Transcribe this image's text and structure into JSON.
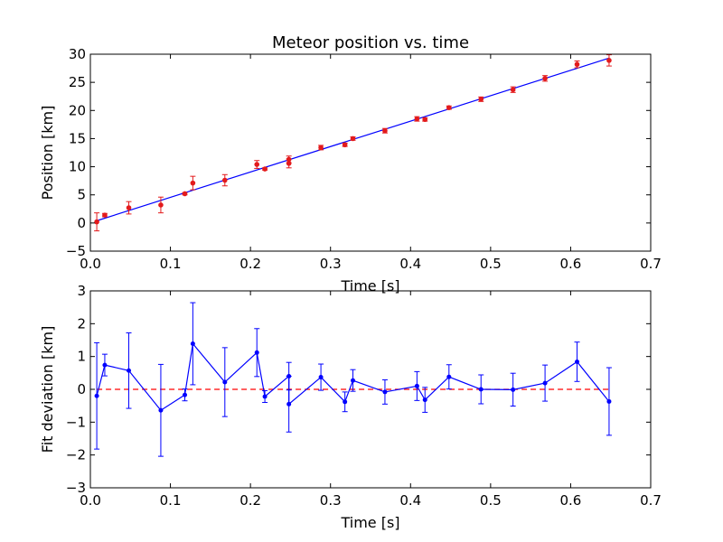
{
  "chart_data": [
    {
      "type": "scatter",
      "title": "Meteor position vs. time",
      "xlabel": "Time [s]",
      "ylabel": "Position [km]",
      "xlim": [
        0,
        0.7
      ],
      "ylim": [
        -5,
        30
      ],
      "xticks": [
        "0.0",
        "0.1",
        "0.2",
        "0.3",
        "0.4",
        "0.5",
        "0.6",
        "0.7"
      ],
      "yticks": [
        "−5",
        "0",
        "5",
        "10",
        "15",
        "20",
        "25",
        "30"
      ],
      "xtick_values": [
        0,
        0.1,
        0.2,
        0.3,
        0.4,
        0.5,
        0.6,
        0.7
      ],
      "ytick_values": [
        -5,
        0,
        5,
        10,
        15,
        20,
        25,
        30
      ],
      "grid": false,
      "points": {
        "color": "#e31a1c",
        "x": [
          0.008,
          0.018,
          0.048,
          0.088,
          0.118,
          0.128,
          0.168,
          0.208,
          0.218,
          0.248,
          0.248,
          0.288,
          0.318,
          0.328,
          0.368,
          0.408,
          0.418,
          0.448,
          0.488,
          0.528,
          0.568,
          0.608,
          0.648
        ],
        "y": [
          0.2,
          1.4,
          2.7,
          3.2,
          5.2,
          7.1,
          7.6,
          10.4,
          9.6,
          11.3,
          10.6,
          13.4,
          13.9,
          15.0,
          16.4,
          18.5,
          18.4,
          20.5,
          22.0,
          23.7,
          25.7,
          28.2,
          28.9
        ],
        "err": [
          1.6,
          0.3,
          1.1,
          1.4,
          0.2,
          1.2,
          1.0,
          0.7,
          0.2,
          0.6,
          0.8,
          0.4,
          0.3,
          0.3,
          0.4,
          0.4,
          0.3,
          0.3,
          0.4,
          0.5,
          0.5,
          0.6,
          1.0
        ]
      },
      "fit_line": {
        "color": "#0000ff",
        "x": [
          0.008,
          0.648
        ],
        "y": [
          0.4,
          29.3
        ]
      }
    },
    {
      "type": "scatter",
      "title": "",
      "xlabel": "Time [s]",
      "ylabel": "Fit deviation [km]",
      "xlim": [
        0,
        0.7
      ],
      "ylim": [
        -3,
        3
      ],
      "xticks": [
        "0.0",
        "0.1",
        "0.2",
        "0.3",
        "0.4",
        "0.5",
        "0.6",
        "0.7"
      ],
      "yticks": [
        "−3",
        "−2",
        "−1",
        "0",
        "1",
        "2",
        "3"
      ],
      "xtick_values": [
        0,
        0.1,
        0.2,
        0.3,
        0.4,
        0.5,
        0.6,
        0.7
      ],
      "ytick_values": [
        -3,
        -2,
        -1,
        0,
        1,
        2,
        3
      ],
      "grid": false,
      "series": {
        "color": "#0000ff",
        "x": [
          0.008,
          0.018,
          0.048,
          0.088,
          0.118,
          0.128,
          0.168,
          0.208,
          0.218,
          0.248,
          0.248,
          0.288,
          0.318,
          0.328,
          0.368,
          0.408,
          0.418,
          0.448,
          0.488,
          0.528,
          0.568,
          0.608,
          0.648
        ],
        "y": [
          -0.2,
          0.74,
          0.57,
          -0.64,
          -0.17,
          1.39,
          0.22,
          1.12,
          -0.22,
          0.4,
          -0.45,
          0.37,
          -0.38,
          0.27,
          -0.08,
          0.1,
          -0.32,
          0.38,
          0.0,
          -0.01,
          0.19,
          0.84,
          -0.37
        ],
        "err": [
          1.62,
          0.33,
          1.15,
          1.4,
          0.18,
          1.25,
          1.05,
          0.73,
          0.18,
          0.42,
          0.85,
          0.4,
          0.3,
          0.33,
          0.37,
          0.44,
          0.38,
          0.37,
          0.44,
          0.5,
          0.55,
          0.6,
          1.03
        ]
      },
      "zero_line": {
        "color": "#ff0000",
        "style": "dashed",
        "x": [
          0.008,
          0.648
        ],
        "y": [
          0,
          0
        ]
      }
    }
  ]
}
